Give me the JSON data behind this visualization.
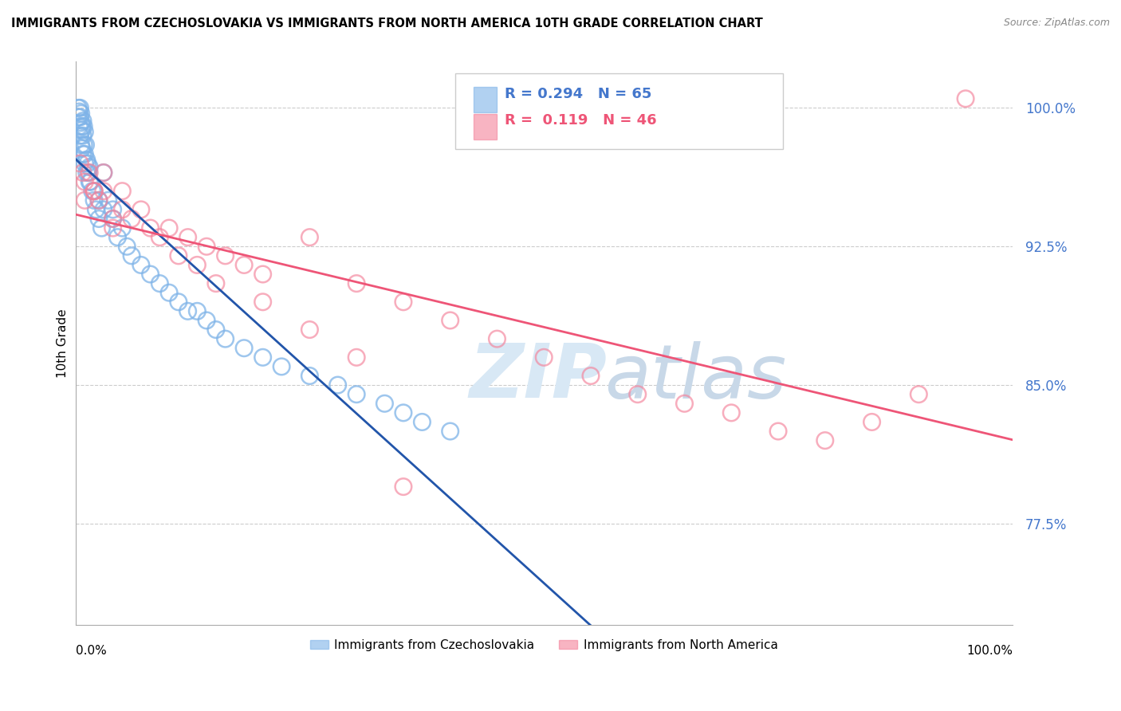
{
  "title": "IMMIGRANTS FROM CZECHOSLOVAKIA VS IMMIGRANTS FROM NORTH AMERICA 10TH GRADE CORRELATION CHART",
  "source": "Source: ZipAtlas.com",
  "ylabel": "10th Grade",
  "ytick_values": [
    77.5,
    85.0,
    92.5,
    100.0
  ],
  "xlim": [
    0.0,
    100.0
  ],
  "ylim": [
    72.0,
    102.5
  ],
  "blue_r": 0.294,
  "blue_n": 65,
  "pink_r": 0.119,
  "pink_n": 46,
  "blue_scatter_color": "#7EB3E8",
  "pink_scatter_color": "#F4829A",
  "blue_line_color": "#2255AA",
  "pink_line_color": "#EE5577",
  "ytick_color": "#4477CC",
  "watermark_color": "#D8E8F5",
  "blue_x": [
    0.3,
    0.4,
    0.5,
    0.5,
    0.6,
    0.6,
    0.7,
    0.7,
    0.8,
    0.8,
    0.9,
    0.9,
    1.0,
    1.0,
    1.1,
    1.2,
    1.3,
    1.4,
    1.5,
    1.6,
    1.8,
    2.0,
    2.2,
    2.5,
    2.8,
    3.0,
    3.5,
    4.0,
    4.5,
    5.0,
    5.5,
    6.0,
    7.0,
    8.0,
    9.0,
    10.0,
    11.0,
    12.0,
    13.0,
    14.0,
    15.0,
    16.0,
    18.0,
    20.0,
    22.0,
    25.0,
    28.0,
    30.0,
    33.0,
    35.0,
    37.0,
    40.0,
    0.3,
    0.4,
    0.5,
    0.6,
    0.7,
    0.8,
    1.0,
    1.2,
    1.5,
    2.0,
    2.5,
    3.0,
    4.0
  ],
  "blue_y": [
    100.0,
    99.8,
    100.0,
    99.5,
    99.7,
    99.2,
    99.0,
    98.8,
    99.3,
    98.5,
    99.0,
    98.0,
    98.7,
    97.5,
    98.0,
    97.2,
    97.0,
    96.5,
    96.8,
    96.0,
    95.5,
    95.0,
    94.5,
    94.0,
    93.5,
    96.5,
    95.0,
    94.5,
    93.0,
    93.5,
    92.5,
    92.0,
    91.5,
    91.0,
    90.5,
    90.0,
    89.5,
    89.0,
    89.0,
    88.5,
    88.0,
    87.5,
    87.0,
    86.5,
    86.0,
    85.5,
    85.0,
    84.5,
    84.0,
    83.5,
    83.0,
    82.5,
    99.5,
    99.0,
    98.5,
    98.0,
    97.8,
    97.5,
    97.0,
    96.5,
    96.0,
    95.5,
    95.0,
    94.5,
    94.0
  ],
  "pink_x": [
    0.5,
    0.8,
    1.0,
    1.5,
    2.0,
    2.5,
    3.0,
    4.0,
    5.0,
    6.0,
    8.0,
    10.0,
    12.0,
    14.0,
    16.0,
    18.0,
    20.0,
    25.0,
    30.0,
    35.0,
    40.0,
    45.0,
    50.0,
    55.0,
    60.0,
    65.0,
    70.0,
    75.0,
    80.0,
    85.0,
    90.0,
    95.0,
    1.0,
    2.0,
    3.0,
    4.0,
    5.0,
    7.0,
    9.0,
    11.0,
    13.0,
    15.0,
    20.0,
    25.0,
    30.0,
    35.0
  ],
  "pink_y": [
    97.0,
    96.5,
    96.0,
    96.5,
    95.5,
    95.0,
    95.5,
    94.0,
    94.5,
    94.0,
    93.5,
    93.5,
    93.0,
    92.5,
    92.0,
    91.5,
    91.0,
    93.0,
    90.5,
    89.5,
    88.5,
    87.5,
    86.5,
    85.5,
    84.5,
    84.0,
    83.5,
    82.5,
    82.0,
    83.0,
    84.5,
    100.5,
    95.0,
    95.5,
    96.5,
    93.5,
    95.5,
    94.5,
    93.0,
    92.0,
    91.5,
    90.5,
    89.5,
    88.0,
    86.5,
    79.5
  ]
}
